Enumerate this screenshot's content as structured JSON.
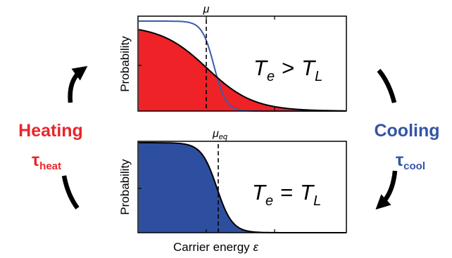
{
  "top_panel": {
    "ylabel": "Probability",
    "mu_label": "μ",
    "relation": {
      "te": "T",
      "te_sub": "e",
      "op": ">",
      "tl": "T",
      "tl_sub": "L"
    }
  },
  "bottom_panel": {
    "ylabel": "Probability",
    "mu_label": "μ",
    "mu_sub": "eq",
    "relation": {
      "te": "T",
      "te_sub": "e",
      "op": "=",
      "tl": "T",
      "tl_sub": "L"
    }
  },
  "xlabel": {
    "text": "Carrier energy",
    "symbol": "ε"
  },
  "heating": {
    "label": "Heating",
    "tau": "τ",
    "tau_sub": "heat",
    "color": "#e8262b"
  },
  "cooling": {
    "label": "Cooling",
    "tau": "τ",
    "tau_sub": "cool",
    "color": "#3455a4"
  },
  "colors": {
    "hot_fill": "#ee2227",
    "eq_fill": "#2e4ea0",
    "eq_curve": "#3d5aa8"
  }
}
